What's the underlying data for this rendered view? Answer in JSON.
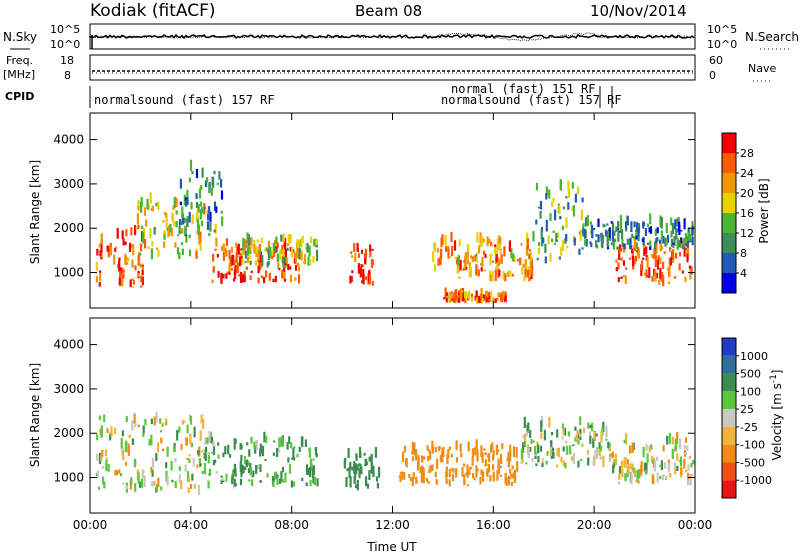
{
  "header": {
    "station": "Kodiak (fitACF)",
    "beam": "Beam 08",
    "date": "10/Nov/2014"
  },
  "strips": {
    "nsky_label": "N.Sky",
    "nsearch_label": "N.Search",
    "noise_ticks_left": [
      "10^5",
      "10^0"
    ],
    "noise_ticks_right": [
      "10^5",
      "10^0"
    ],
    "freq_label_1": "Freq.",
    "freq_label_2": "[MHz]",
    "freq_ticks": [
      "18",
      "8"
    ],
    "nave_label": "Nave",
    "nave_ticks": [
      "60",
      "0"
    ],
    "cpid_label": "CPID",
    "cpid_1": "normalsound (fast) 157 RF",
    "cpid_2": "normal (fast) 151 RF",
    "cpid_3": "normalsound (fast) 157 RF"
  },
  "chart_data": [
    {
      "type": "heatmap",
      "name": "Power",
      "ylabel": "Slant Range [km]",
      "ylim": [
        200,
        4600
      ],
      "yticks": [
        "1000",
        "2000",
        "3000",
        "4000"
      ],
      "colorbar_label": "Power [dB]",
      "colorbar_ticks": [
        "4",
        "8",
        "12",
        "16",
        "20",
        "24",
        "28"
      ],
      "colorbar_range": [
        0,
        32
      ],
      "colors": [
        "#0000e6",
        "#1f5bb4",
        "#3d8c5a",
        "#49b530",
        "#e6d200",
        "#f09600",
        "#ff5a00",
        "#f00000"
      ],
      "echo_regions": [
        {
          "t": [
            0.2,
            2.2
          ],
          "r": [
            650,
            1900
          ],
          "level": 26
        },
        {
          "t": [
            1.8,
            4.5
          ],
          "r": [
            1300,
            2600
          ],
          "level": 18
        },
        {
          "t": [
            3.5,
            5.2
          ],
          "r": [
            1800,
            3300
          ],
          "level": 10
        },
        {
          "t": [
            4.8,
            8.3
          ],
          "r": [
            750,
            1600
          ],
          "level": 27
        },
        {
          "t": [
            6.0,
            9.0
          ],
          "r": [
            1100,
            1700
          ],
          "level": 15
        },
        {
          "t": [
            10.2,
            11.2
          ],
          "r": [
            700,
            1500
          ],
          "level": 30
        },
        {
          "t": [
            13.5,
            17.5
          ],
          "r": [
            800,
            1700
          ],
          "level": 22
        },
        {
          "t": [
            14.0,
            16.5
          ],
          "r": [
            300,
            450
          ],
          "level": 24
        },
        {
          "t": [
            17.5,
            19.5
          ],
          "r": [
            1200,
            2900
          ],
          "level": 12
        },
        {
          "t": [
            20.8,
            23.9
          ],
          "r": [
            700,
            1600
          ],
          "level": 27
        },
        {
          "t": [
            19.5,
            23.9
          ],
          "r": [
            1500,
            2100
          ],
          "level": 9
        }
      ]
    },
    {
      "type": "heatmap",
      "name": "Velocity",
      "ylabel": "Slant Range [km]",
      "ylim": [
        200,
        4600
      ],
      "yticks": [
        "1000",
        "2000",
        "3000",
        "4000"
      ],
      "xlabel": "Time UT",
      "xticks": [
        "00:00",
        "04:00",
        "08:00",
        "12:00",
        "16:00",
        "20:00",
        "00:00"
      ],
      "xlim": [
        0,
        24
      ],
      "colorbar_label": "Velocity [m s",
      "colorbar_superscript": "-1",
      "colorbar_label_end": "]",
      "colorbar_ticks": [
        "1000",
        "500",
        "100",
        "25",
        "-25",
        "-100",
        "-500",
        "-1000"
      ],
      "colors": [
        "#1e3cc8",
        "#2f6e9c",
        "#3c8c50",
        "#5ac83c",
        "#c8c8be",
        "#f0b43c",
        "#f08c14",
        "#f05014",
        "#e61414"
      ],
      "echo_regions": [
        {
          "t": [
            0.2,
            4.5
          ],
          "r": [
            600,
            2300
          ],
          "v": 0
        },
        {
          "t": [
            4.5,
            9.0
          ],
          "r": [
            750,
            1800
          ],
          "v": 150
        },
        {
          "t": [
            10.0,
            11.5
          ],
          "r": [
            700,
            1500
          ],
          "v": 300
        },
        {
          "t": [
            12.2,
            17.0
          ],
          "r": [
            800,
            1650
          ],
          "v": -300
        },
        {
          "t": [
            17.0,
            20.5
          ],
          "r": [
            1200,
            2200
          ],
          "v": 60
        },
        {
          "t": [
            20.5,
            23.9
          ],
          "r": [
            800,
            1800
          ],
          "v": 0
        }
      ]
    }
  ]
}
